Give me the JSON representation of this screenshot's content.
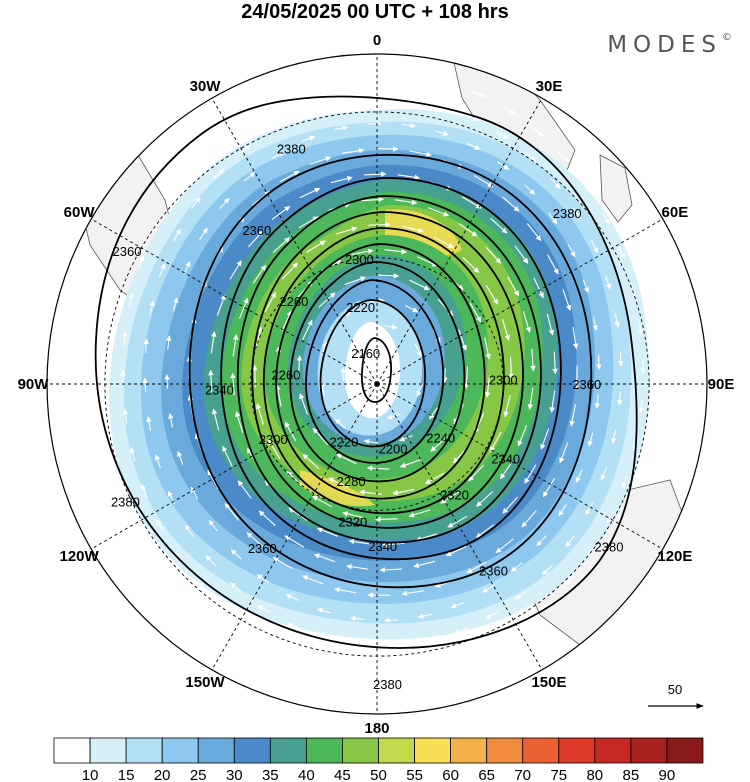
{
  "title": "24/05/2025  00 UTC  + 108 hrs",
  "brand": "MODES",
  "brand_mark": "©",
  "longitude_labels": [
    {
      "text": "0",
      "lon": 0
    },
    {
      "text": "30E",
      "lon": 30
    },
    {
      "text": "60E",
      "lon": 60
    },
    {
      "text": "90E",
      "lon": 90
    },
    {
      "text": "120E",
      "lon": 120
    },
    {
      "text": "150E",
      "lon": 150
    },
    {
      "text": "180",
      "lon": 180
    },
    {
      "text": "150W",
      "lon": -150
    },
    {
      "text": "120W",
      "lon": -120
    },
    {
      "text": "90W",
      "lon": -90
    },
    {
      "text": "60W",
      "lon": -60
    },
    {
      "text": "30W",
      "lon": -30
    }
  ],
  "contour_labels": [
    "2160",
    "2200",
    "2220",
    "2240",
    "2260",
    "2280",
    "2300",
    "2320",
    "2340",
    "2360",
    "2380"
  ],
  "contour_label_placements": [
    {
      "text": "2380",
      "lon": -20,
      "lat": -34
    },
    {
      "text": "2380",
      "lon": 48,
      "lat": -33
    },
    {
      "text": "2380",
      "lon": 125,
      "lat": -28
    },
    {
      "text": "2380",
      "lon": 178,
      "lat": -25
    },
    {
      "text": "2380",
      "lon": -115,
      "lat": -29
    },
    {
      "text": "2360",
      "lon": -62,
      "lat": -28
    },
    {
      "text": "2360",
      "lon": -38,
      "lat": -45
    },
    {
      "text": "2360",
      "lon": 90,
      "lat": -42
    },
    {
      "text": "2360",
      "lon": 148,
      "lat": -40
    },
    {
      "text": "2360",
      "lon": -145,
      "lat": -44
    },
    {
      "text": "2340",
      "lon": -92,
      "lat": -53
    },
    {
      "text": "2340",
      "lon": 120,
      "lat": -55
    },
    {
      "text": "2340",
      "lon": 178,
      "lat": -52
    },
    {
      "text": "2320",
      "lon": -170,
      "lat": -57
    },
    {
      "text": "2320",
      "lon": 145,
      "lat": -58
    },
    {
      "text": "2300",
      "lon": -8,
      "lat": -60
    },
    {
      "text": "2300",
      "lon": 88,
      "lat": -60
    },
    {
      "text": "2300",
      "lon": -118,
      "lat": -62
    },
    {
      "text": "2280",
      "lon": -165,
      "lat": -66
    },
    {
      "text": "2260",
      "lon": -45,
      "lat": -62
    },
    {
      "text": "2260",
      "lon": -84,
      "lat": -68
    },
    {
      "text": "2240",
      "lon": 130,
      "lat": -70
    },
    {
      "text": "2220",
      "lon": -12,
      "lat": -71
    },
    {
      "text": "2220",
      "lon": -150,
      "lat": -74
    },
    {
      "text": "2200",
      "lon": 166,
      "lat": -74
    },
    {
      "text": "2160",
      "lon": -20,
      "lat": -82
    }
  ],
  "colorbar": {
    "ticks": [
      "10",
      "15",
      "20",
      "25",
      "30",
      "35",
      "40",
      "45",
      "50",
      "55",
      "60",
      "65",
      "70",
      "75",
      "80",
      "85",
      "90"
    ],
    "colors": [
      "#ffffff",
      "#d6f0fa",
      "#b3e0f5",
      "#8ec8ee",
      "#6aa9dc",
      "#4a8ac8",
      "#48a090",
      "#4db85a",
      "#86c846",
      "#c2d94b",
      "#f7de55",
      "#f4b34a",
      "#f08a3e",
      "#ea6133",
      "#de3a2a",
      "#c62825",
      "#a8201f",
      "#8a1a1a"
    ]
  },
  "vector_reference": {
    "value": "50"
  },
  "colors": {
    "land": "#f2f2f2",
    "coast": "#555555",
    "contour": "#000000",
    "vector": "#ffffff"
  }
}
